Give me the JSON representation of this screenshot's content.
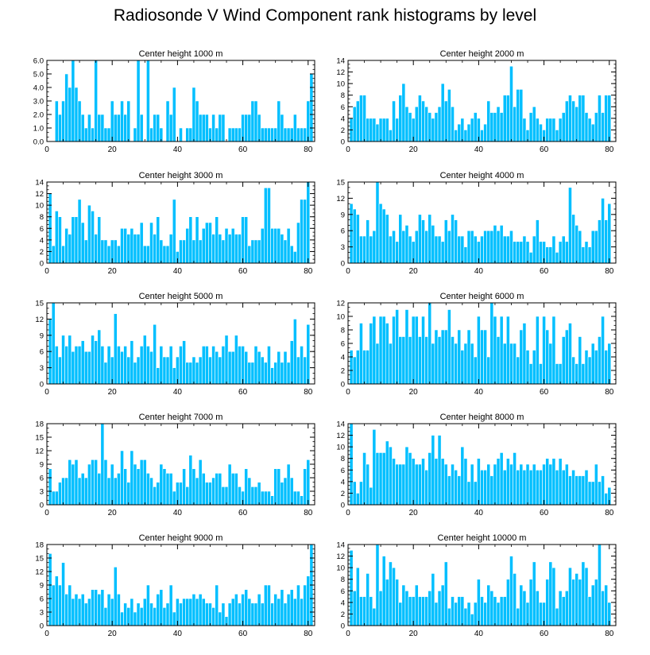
{
  "title": "Radiosonde V Wind Component rank histograms by level",
  "colors": {
    "bar": "#00bfff",
    "bar_edge": "#ffffff",
    "axis": "#000000"
  },
  "chart_data": [
    {
      "type": "bar",
      "title": "Center height 1000 m",
      "xlim": [
        0,
        82
      ],
      "ylim": [
        0,
        6
      ],
      "yticks": [
        0,
        1,
        2,
        3,
        4,
        5,
        6
      ],
      "ytick_labels": [
        "0.0",
        "1.0",
        "2.0",
        "3.0",
        "4.0",
        "5.0",
        "6.0"
      ],
      "xticks": [
        0,
        20,
        40,
        60,
        80
      ],
      "values": [
        0,
        0,
        3,
        2,
        3,
        5,
        4,
        6,
        4,
        3,
        2,
        1,
        2,
        1,
        6,
        2,
        2,
        1,
        1,
        3,
        2,
        2,
        3,
        2,
        3,
        0,
        1,
        6,
        2,
        0,
        6,
        1,
        2,
        2,
        1,
        0,
        3,
        2,
        4,
        0,
        1,
        0,
        1,
        1,
        4,
        3,
        2,
        2,
        2,
        1,
        2,
        1,
        2,
        2,
        0,
        1,
        1,
        1,
        1,
        2,
        2,
        2,
        3,
        3,
        2,
        1,
        1,
        1,
        1,
        1,
        3,
        2,
        1,
        1,
        1,
        2,
        1,
        1,
        1,
        3,
        5
      ]
    },
    {
      "type": "bar",
      "title": "Center height 2000 m",
      "xlim": [
        0,
        82
      ],
      "ylim": [
        0,
        14
      ],
      "yticks": [
        0,
        2,
        4,
        6,
        8,
        10,
        12,
        14
      ],
      "ytick_labels": [
        "0",
        "2",
        "4",
        "6",
        "8",
        "10",
        "12",
        "14"
      ],
      "xticks": [
        0,
        20,
        40,
        60,
        80
      ],
      "values": [
        4,
        6,
        7,
        8,
        8,
        4,
        4,
        4,
        3,
        4,
        4,
        4,
        2,
        7,
        4,
        8,
        10,
        6,
        5,
        4,
        6,
        8,
        7,
        6,
        5,
        4,
        5,
        6,
        10,
        7,
        9,
        6,
        2,
        3,
        4,
        2,
        3,
        4,
        5,
        4,
        2,
        3,
        7,
        5,
        5,
        6,
        5,
        8,
        8,
        13,
        6,
        9,
        9,
        4,
        2,
        5,
        6,
        4,
        3,
        2,
        4,
        4,
        4,
        2,
        4,
        5,
        7,
        8,
        7,
        6,
        8,
        8,
        5,
        4,
        3,
        5,
        8,
        5,
        8,
        8,
        0
      ]
    },
    {
      "type": "bar",
      "title": "Center height 3000 m",
      "xlim": [
        0,
        82
      ],
      "ylim": [
        0,
        14
      ],
      "yticks": [
        0,
        2,
        4,
        6,
        8,
        10,
        12,
        14
      ],
      "ytick_labels": [
        "0",
        "2",
        "4",
        "6",
        "8",
        "10",
        "12",
        "14"
      ],
      "xticks": [
        0,
        20,
        40,
        60,
        80
      ],
      "values": [
        12,
        3,
        9,
        8,
        3,
        6,
        5,
        8,
        8,
        11,
        7,
        4,
        10,
        9,
        5,
        8,
        4,
        4,
        3,
        4,
        4,
        3,
        6,
        6,
        5,
        6,
        5,
        5,
        7,
        3,
        3,
        7,
        5,
        8,
        4,
        3,
        3,
        5,
        11,
        2,
        4,
        4,
        6,
        8,
        4,
        8,
        4,
        6,
        7,
        7,
        5,
        8,
        5,
        4,
        6,
        5,
        6,
        5,
        5,
        8,
        8,
        3,
        4,
        4,
        4,
        6,
        13,
        13,
        6,
        6,
        6,
        5,
        4,
        6,
        3,
        2,
        7,
        11,
        11,
        14,
        0
      ]
    },
    {
      "type": "bar",
      "title": "Center height 4000 m",
      "xlim": [
        0,
        82
      ],
      "ylim": [
        0,
        15
      ],
      "yticks": [
        0,
        3,
        6,
        9,
        12,
        15
      ],
      "ytick_labels": [
        "0",
        "3",
        "6",
        "9",
        "12",
        "15"
      ],
      "xticks": [
        0,
        20,
        40,
        60,
        80
      ],
      "values": [
        11,
        10,
        9,
        5,
        5,
        8,
        5,
        6,
        15,
        11,
        10,
        9,
        5,
        6,
        4,
        9,
        6,
        7,
        5,
        4,
        6,
        9,
        8,
        6,
        9,
        7,
        5,
        5,
        4,
        8,
        6,
        9,
        8,
        5,
        5,
        3,
        6,
        6,
        5,
        4,
        5,
        6,
        6,
        6,
        7,
        6,
        7,
        5,
        5,
        6,
        4,
        4,
        4,
        5,
        4,
        2,
        5,
        8,
        4,
        4,
        3,
        3,
        5,
        2,
        4,
        5,
        4,
        14,
        9,
        7,
        6,
        3,
        4,
        3,
        6,
        6,
        8,
        12,
        8,
        11,
        0
      ]
    },
    {
      "type": "bar",
      "title": "Center height 5000 m",
      "xlim": [
        0,
        82
      ],
      "ylim": [
        0,
        15
      ],
      "yticks": [
        0,
        3,
        6,
        9,
        12,
        15
      ],
      "ytick_labels": [
        "0",
        "3",
        "6",
        "9",
        "12",
        "15"
      ],
      "xticks": [
        0,
        20,
        40,
        60,
        80
      ],
      "values": [
        12,
        15,
        7,
        5,
        9,
        7,
        9,
        6,
        7,
        7,
        8,
        6,
        6,
        9,
        8,
        10,
        7,
        4,
        7,
        5,
        13,
        7,
        6,
        7,
        5,
        8,
        4,
        5,
        7,
        9,
        7,
        6,
        11,
        3,
        7,
        5,
        5,
        7,
        3,
        5,
        7,
        8,
        4,
        4,
        5,
        4,
        5,
        7,
        7,
        5,
        7,
        6,
        5,
        7,
        9,
        6,
        6,
        9,
        7,
        7,
        6,
        4,
        4,
        7,
        6,
        5,
        4,
        7,
        3,
        4,
        6,
        4,
        6,
        4,
        8,
        12,
        5,
        7,
        5,
        11,
        0
      ]
    },
    {
      "type": "bar",
      "title": "Center height 6000 m",
      "xlim": [
        0,
        82
      ],
      "ylim": [
        0,
        12
      ],
      "yticks": [
        0,
        2,
        4,
        6,
        8,
        10,
        12
      ],
      "ytick_labels": [
        "0",
        "2",
        "4",
        "6",
        "8",
        "10",
        "12"
      ],
      "xticks": [
        0,
        20,
        40,
        60,
        80
      ],
      "values": [
        5,
        4,
        5,
        9,
        5,
        5,
        9,
        10,
        6,
        10,
        10,
        9,
        6,
        10,
        11,
        7,
        7,
        11,
        7,
        10,
        10,
        7,
        10,
        7,
        12,
        6,
        8,
        7,
        8,
        8,
        11,
        7,
        6,
        8,
        5,
        6,
        8,
        6,
        4,
        10,
        8,
        8,
        4,
        12,
        10,
        7,
        10,
        6,
        10,
        6,
        6,
        4,
        8,
        9,
        5,
        3,
        5,
        10,
        3,
        10,
        8,
        6,
        10,
        3,
        3,
        7,
        8,
        9,
        4,
        3,
        7,
        3,
        5,
        4,
        6,
        5,
        7,
        10,
        5,
        6,
        0
      ]
    },
    {
      "type": "bar",
      "title": "Center height 7000 m",
      "xlim": [
        0,
        82
      ],
      "ylim": [
        0,
        18
      ],
      "yticks": [
        0,
        3,
        6,
        9,
        12,
        15,
        18
      ],
      "ytick_labels": [
        "0",
        "3",
        "6",
        "9",
        "12",
        "15",
        "18"
      ],
      "xticks": [
        0,
        20,
        40,
        60,
        80
      ],
      "values": [
        8,
        3,
        3,
        5,
        6,
        6,
        10,
        9,
        10,
        6,
        7,
        6,
        9,
        10,
        10,
        7,
        18,
        10,
        6,
        9,
        6,
        7,
        12,
        8,
        5,
        12,
        9,
        8,
        10,
        10,
        7,
        6,
        4,
        5,
        9,
        8,
        7,
        7,
        3,
        5,
        5,
        8,
        4,
        11,
        8,
        6,
        10,
        7,
        5,
        5,
        6,
        7,
        7,
        4,
        4,
        9,
        7,
        7,
        4,
        3,
        8,
        6,
        4,
        4,
        5,
        3,
        3,
        3,
        2,
        8,
        8,
        5,
        6,
        9,
        6,
        3,
        3,
        2,
        8,
        10,
        0
      ]
    },
    {
      "type": "bar",
      "title": "Center height 8000 m",
      "xlim": [
        0,
        82
      ],
      "ylim": [
        0,
        14
      ],
      "yticks": [
        0,
        2,
        4,
        6,
        8,
        10,
        12,
        14
      ],
      "ytick_labels": [
        "0",
        "2",
        "4",
        "6",
        "8",
        "10",
        "12",
        "14"
      ],
      "xticks": [
        0,
        20,
        40,
        60,
        80
      ],
      "values": [
        14,
        4,
        2,
        4,
        9,
        7,
        3,
        13,
        9,
        9,
        9,
        11,
        10,
        8,
        7,
        7,
        7,
        10,
        9,
        8,
        7,
        7,
        8,
        6,
        9,
        12,
        8,
        12,
        8,
        7,
        5,
        7,
        6,
        5,
        10,
        8,
        4,
        7,
        4,
        8,
        6,
        6,
        7,
        5,
        7,
        8,
        9,
        6,
        8,
        7,
        9,
        6,
        7,
        6,
        7,
        6,
        7,
        6,
        6,
        7,
        8,
        7,
        8,
        6,
        8,
        6,
        7,
        5,
        6,
        5,
        5,
        5,
        6,
        4,
        4,
        7,
        4,
        5,
        2,
        3,
        0
      ]
    },
    {
      "type": "bar",
      "title": "Center height 9000 m",
      "xlim": [
        0,
        82
      ],
      "ylim": [
        0,
        18
      ],
      "yticks": [
        0,
        3,
        6,
        9,
        12,
        15,
        18
      ],
      "ytick_labels": [
        "0",
        "3",
        "6",
        "9",
        "12",
        "15",
        "18"
      ],
      "xticks": [
        0,
        20,
        40,
        60,
        80
      ],
      "values": [
        16,
        9,
        11,
        9,
        14,
        7,
        9,
        6,
        7,
        6,
        7,
        5,
        6,
        8,
        8,
        7,
        8,
        4,
        7,
        6,
        13,
        7,
        3,
        5,
        4,
        6,
        3,
        5,
        4,
        6,
        9,
        5,
        4,
        7,
        8,
        4,
        5,
        9,
        3,
        6,
        5,
        6,
        6,
        6,
        7,
        6,
        7,
        6,
        5,
        5,
        4,
        9,
        3,
        5,
        2,
        5,
        6,
        7,
        5,
        7,
        8,
        6,
        5,
        5,
        7,
        5,
        9,
        9,
        5,
        7,
        6,
        8,
        5,
        7,
        8,
        6,
        9,
        6,
        9,
        11,
        18
      ]
    },
    {
      "type": "bar",
      "title": "Center height 10000 m",
      "xlim": [
        0,
        82
      ],
      "ylim": [
        0,
        14
      ],
      "yticks": [
        0,
        2,
        4,
        6,
        8,
        10,
        12,
        14
      ],
      "ytick_labels": [
        "0",
        "2",
        "4",
        "6",
        "8",
        "10",
        "12",
        "14"
      ],
      "xticks": [
        0,
        20,
        40,
        60,
        80
      ],
      "values": [
        13,
        6,
        10,
        5,
        5,
        9,
        5,
        3,
        14,
        6,
        12,
        8,
        11,
        10,
        8,
        4,
        7,
        6,
        5,
        5,
        7,
        5,
        5,
        5,
        6,
        9,
        4,
        6,
        7,
        11,
        3,
        5,
        4,
        5,
        5,
        3,
        4,
        2,
        4,
        8,
        5,
        4,
        7,
        6,
        5,
        4,
        5,
        5,
        8,
        12,
        9,
        3,
        7,
        6,
        4,
        8,
        11,
        6,
        4,
        4,
        8,
        11,
        10,
        3,
        6,
        5,
        6,
        10,
        8,
        9,
        8,
        11,
        10,
        5,
        7,
        8,
        14,
        6,
        7,
        4,
        0
      ]
    }
  ]
}
